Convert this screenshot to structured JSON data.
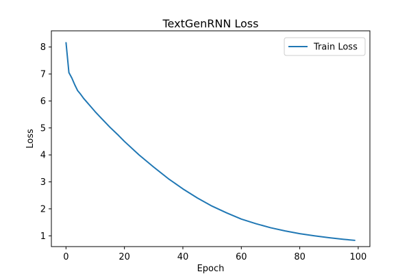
{
  "chart_data": {
    "type": "line",
    "title": "TextGenRNN Loss",
    "xlabel": "Epoch",
    "ylabel": "Loss",
    "xlim": [
      -5,
      104
    ],
    "ylim": [
      0.6,
      8.6
    ],
    "xticks": [
      0,
      20,
      40,
      60,
      80,
      100
    ],
    "yticks": [
      1,
      2,
      3,
      4,
      5,
      6,
      7,
      8
    ],
    "grid": false,
    "legend_position": "top-right",
    "series": [
      {
        "name": "Train Loss",
        "color": "#1f77b4",
        "x": [
          0,
          1,
          2,
          3,
          4,
          5,
          6,
          8,
          10,
          12,
          15,
          18,
          20,
          25,
          30,
          35,
          40,
          45,
          50,
          55,
          60,
          65,
          70,
          75,
          80,
          85,
          90,
          95,
          99
        ],
        "y": [
          8.18,
          7.05,
          6.85,
          6.6,
          6.38,
          6.25,
          6.1,
          5.85,
          5.6,
          5.37,
          5.03,
          4.72,
          4.5,
          4.0,
          3.55,
          3.12,
          2.74,
          2.4,
          2.1,
          1.85,
          1.62,
          1.45,
          1.3,
          1.18,
          1.08,
          1.0,
          0.93,
          0.87,
          0.83
        ]
      }
    ]
  }
}
